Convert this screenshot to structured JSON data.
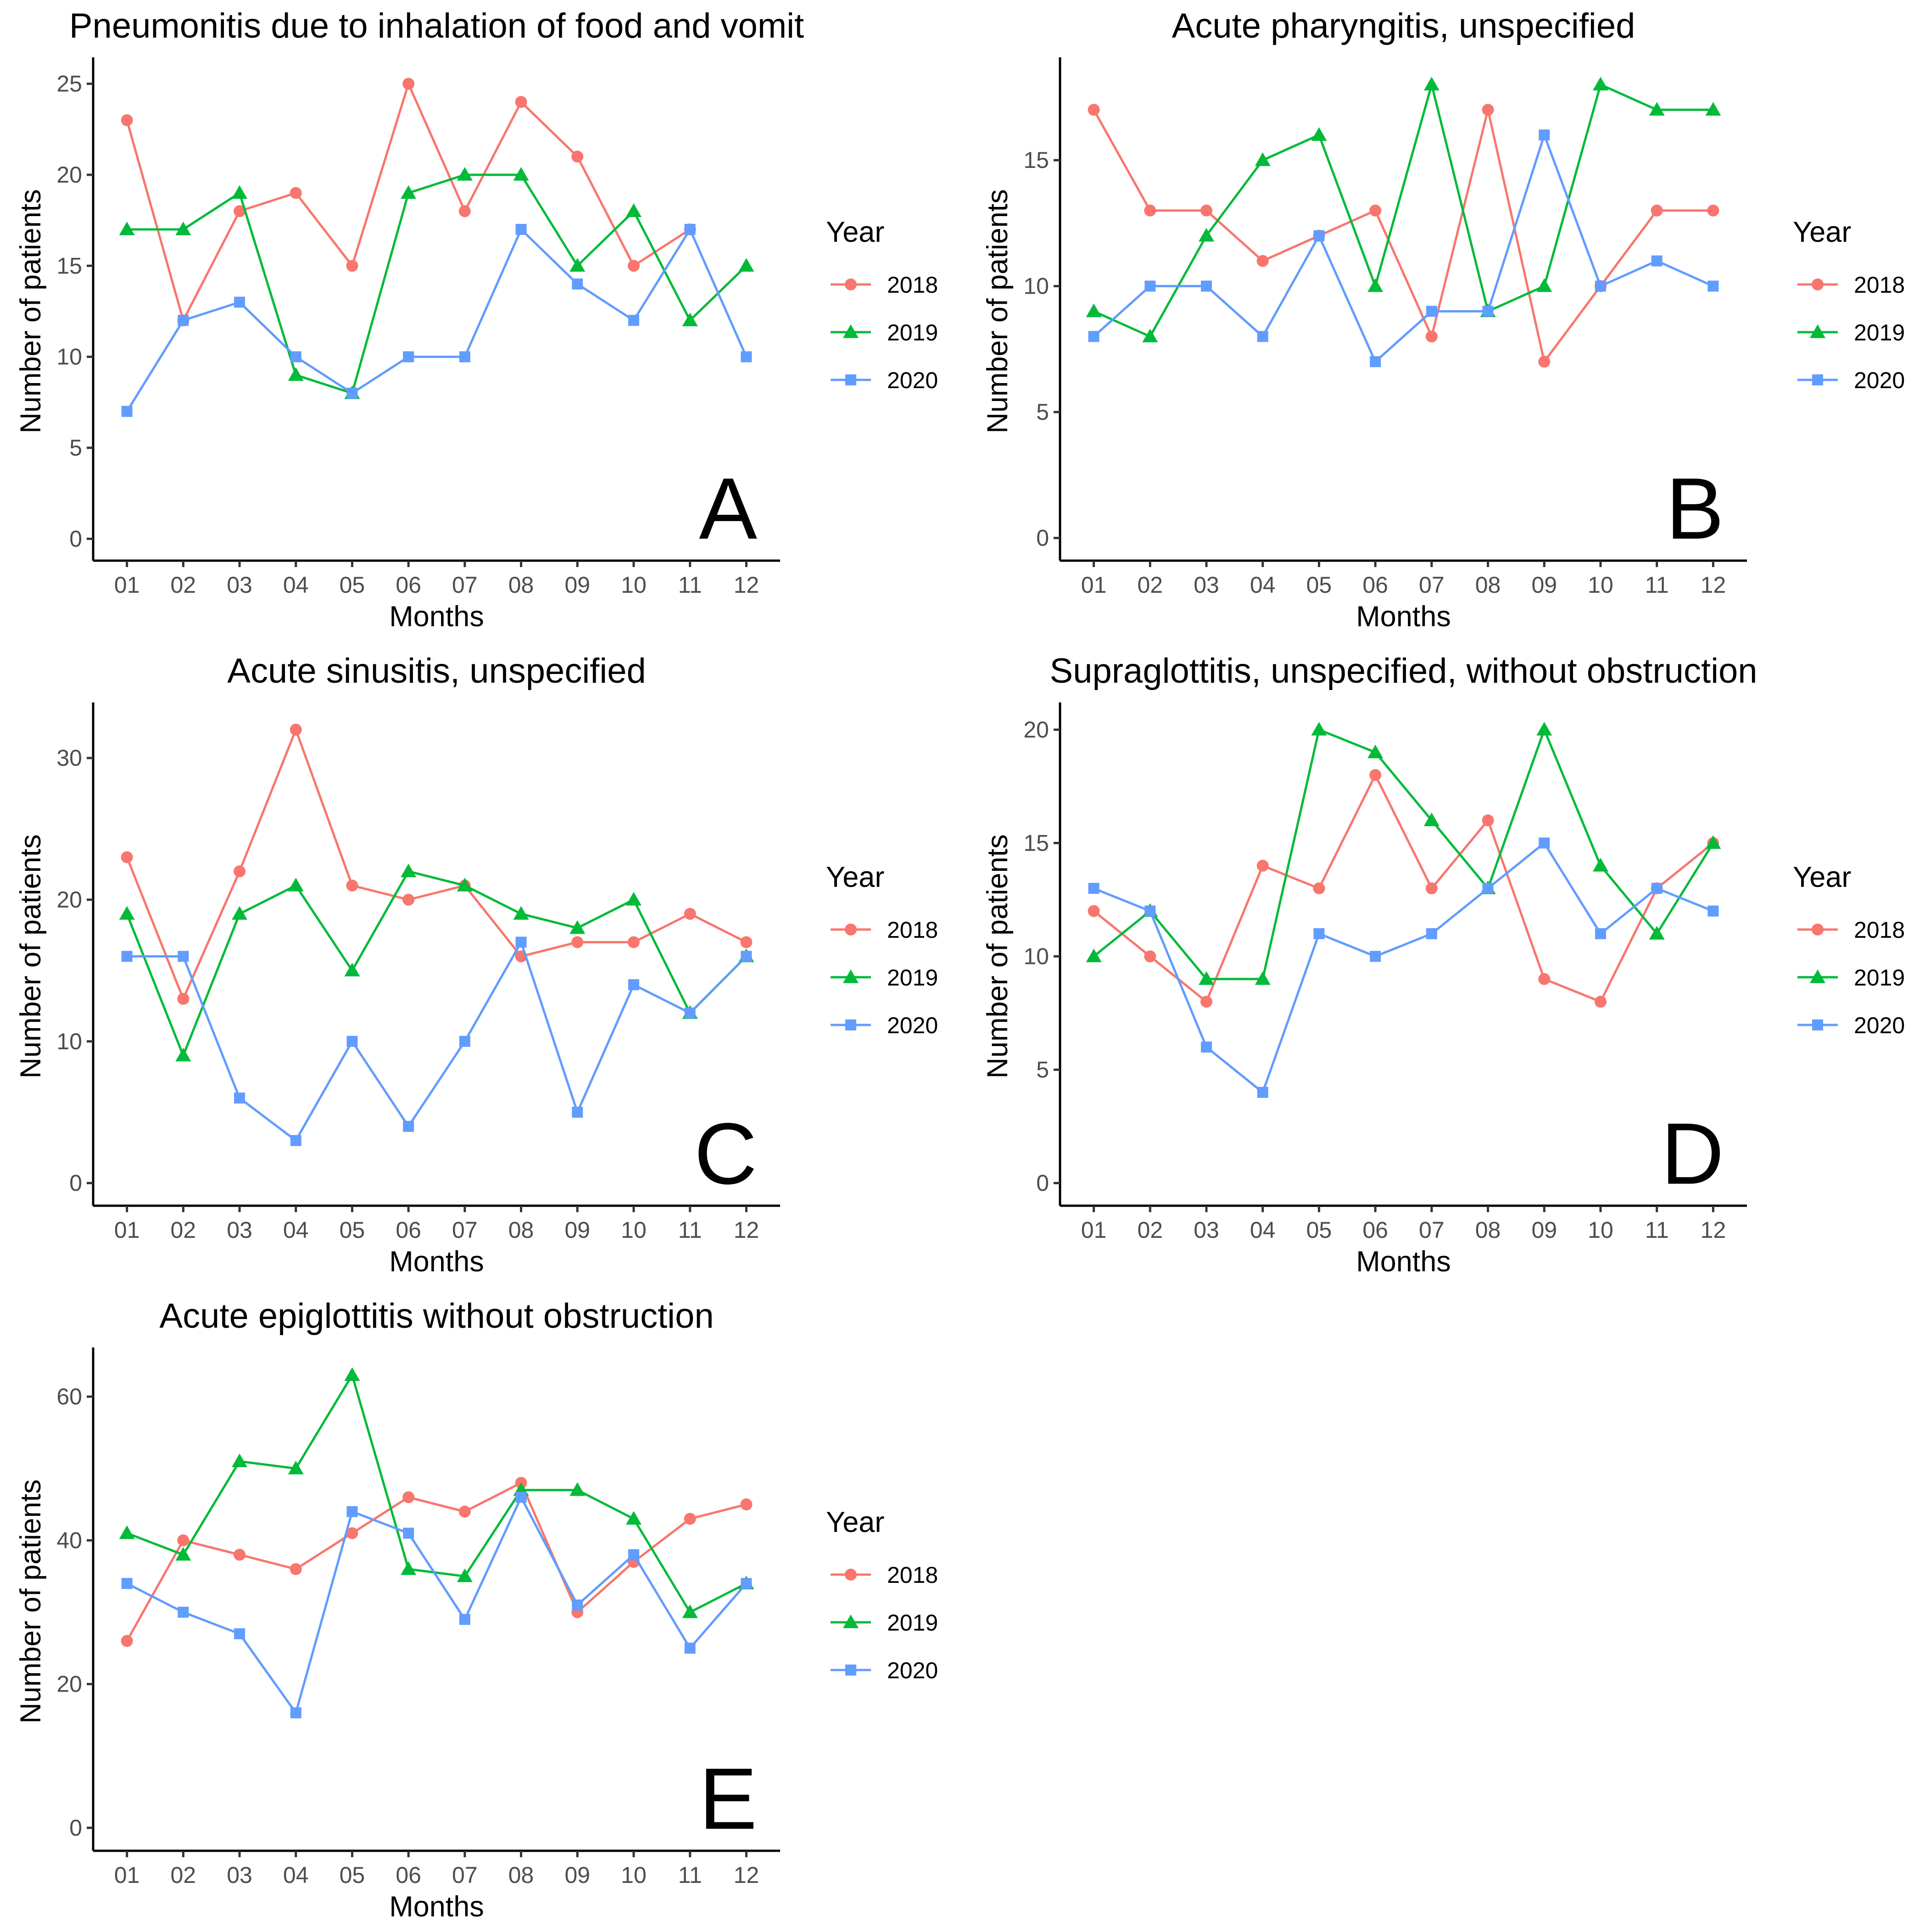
{
  "colors": {
    "2018": "#F8766D",
    "2019": "#00BA38",
    "2020": "#619CFF"
  },
  "legend": {
    "title": "Year",
    "entries": [
      "2018",
      "2019",
      "2020"
    ]
  },
  "chart_data": [
    {
      "type": "line",
      "panel": "A",
      "title": "Pneumonitis due to inhalation of food and vomit",
      "xlabel": "Months",
      "ylabel": "Number of patients",
      "categories": [
        "01",
        "02",
        "03",
        "04",
        "05",
        "06",
        "07",
        "08",
        "09",
        "10",
        "11",
        "12"
      ],
      "ylim": [
        -1.2,
        26.2
      ],
      "yticks": [
        0,
        5,
        10,
        15,
        20,
        25
      ],
      "series": [
        {
          "name": "2018",
          "values": [
            23,
            12,
            18,
            19,
            15,
            25,
            18,
            24,
            21,
            15,
            17,
            null
          ]
        },
        {
          "name": "2019",
          "values": [
            17,
            17,
            19,
            9,
            8,
            19,
            20,
            20,
            15,
            18,
            12,
            15
          ]
        },
        {
          "name": "2020",
          "values": [
            7,
            12,
            13,
            10,
            8,
            10,
            10,
            17,
            14,
            12,
            17,
            10
          ]
        }
      ]
    },
    {
      "type": "line",
      "panel": "B",
      "title": "Acute pharyngitis, unspecified",
      "xlabel": "Months",
      "ylabel": "Number of patients",
      "categories": [
        "01",
        "02",
        "03",
        "04",
        "05",
        "06",
        "07",
        "08",
        "09",
        "10",
        "11",
        "12"
      ],
      "ylim": [
        -0.9,
        18.9
      ],
      "yticks": [
        0,
        5,
        10,
        15
      ],
      "series": [
        {
          "name": "2018",
          "values": [
            17,
            13,
            13,
            11,
            12,
            13,
            8,
            17,
            7,
            10,
            13,
            13
          ]
        },
        {
          "name": "2019",
          "values": [
            9,
            8,
            12,
            15,
            16,
            10,
            18,
            9,
            10,
            18,
            17,
            17
          ]
        },
        {
          "name": "2020",
          "values": [
            8,
            10,
            10,
            8,
            12,
            7,
            9,
            9,
            16,
            10,
            11,
            10
          ]
        }
      ]
    },
    {
      "type": "line",
      "panel": "C",
      "title": "Acute sinusitis, unspecified",
      "xlabel": "Months",
      "ylabel": "Number of patients",
      "categories": [
        "01",
        "02",
        "03",
        "04",
        "05",
        "06",
        "07",
        "08",
        "09",
        "10",
        "11",
        "12"
      ],
      "ylim": [
        -1.6,
        33.6
      ],
      "yticks": [
        0,
        10,
        20,
        30
      ],
      "series": [
        {
          "name": "2018",
          "values": [
            23,
            13,
            22,
            32,
            21,
            20,
            21,
            16,
            17,
            17,
            19,
            17
          ]
        },
        {
          "name": "2019",
          "values": [
            19,
            9,
            19,
            21,
            15,
            22,
            21,
            19,
            18,
            20,
            12,
            16
          ]
        },
        {
          "name": "2020",
          "values": [
            16,
            16,
            6,
            3,
            10,
            4,
            10,
            17,
            5,
            14,
            12,
            16
          ]
        }
      ]
    },
    {
      "type": "line",
      "panel": "D",
      "title": "Supraglottitis, unspecified, without obstruction",
      "xlabel": "Months",
      "ylabel": "Number of patients",
      "categories": [
        "01",
        "02",
        "03",
        "04",
        "05",
        "06",
        "07",
        "08",
        "09",
        "10",
        "11",
        "12"
      ],
      "ylim": [
        -1.0,
        21.0
      ],
      "yticks": [
        0,
        5,
        10,
        15,
        20
      ],
      "series": [
        {
          "name": "2018",
          "values": [
            12,
            10,
            8,
            14,
            13,
            18,
            13,
            16,
            9,
            8,
            13,
            15
          ]
        },
        {
          "name": "2019",
          "values": [
            10,
            12,
            9,
            9,
            20,
            19,
            16,
            13,
            20,
            14,
            11,
            15
          ]
        },
        {
          "name": "2020",
          "values": [
            13,
            12,
            6,
            4,
            11,
            10,
            11,
            13,
            15,
            11,
            13,
            12
          ]
        }
      ]
    },
    {
      "type": "line",
      "panel": "E",
      "title": "Acute epiglottitis without obstruction",
      "xlabel": "Months",
      "ylabel": "Number of patients",
      "categories": [
        "01",
        "02",
        "03",
        "04",
        "05",
        "06",
        "07",
        "08",
        "09",
        "10",
        "11",
        "12"
      ],
      "ylim": [
        -3.2,
        66.2
      ],
      "yticks": [
        0,
        20,
        40,
        60
      ],
      "series": [
        {
          "name": "2018",
          "values": [
            26,
            40,
            38,
            36,
            41,
            46,
            44,
            48,
            30,
            37,
            43,
            45
          ]
        },
        {
          "name": "2019",
          "values": [
            41,
            38,
            51,
            50,
            63,
            36,
            35,
            47,
            47,
            43,
            30,
            34
          ]
        },
        {
          "name": "2020",
          "values": [
            34,
            30,
            27,
            16,
            44,
            41,
            29,
            46,
            31,
            38,
            25,
            34
          ]
        }
      ]
    }
  ]
}
